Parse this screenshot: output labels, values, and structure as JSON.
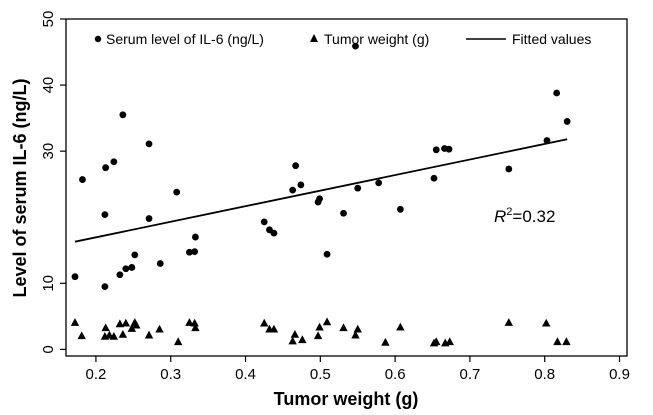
{
  "chart_data": {
    "type": "scatter",
    "xlabel": "Tumor weight (g)",
    "ylabel": "Level of serum IL-6 (ng/L)",
    "xlim": [
      0.16,
      0.91
    ],
    "ylim": [
      -1,
      50
    ],
    "x_ticks": [
      0.2,
      0.3,
      0.4,
      0.5,
      0.6,
      0.7,
      0.8,
      0.9
    ],
    "x_tick_labels": [
      "0.2",
      "0.3",
      "0.4",
      "0.5",
      "0.6",
      "0.7",
      "0.8",
      "0.9"
    ],
    "y_ticks": [
      0,
      10,
      30,
      40,
      50
    ],
    "y_tick_labels": [
      "0",
      "10",
      "30",
      "40",
      "50"
    ],
    "grid": false,
    "legend_position": "top",
    "legend": [
      {
        "label": "Serum level of IL-6 (ng/L)",
        "marker": "circle"
      },
      {
        "label": "Tumor weight (g)",
        "marker": "triangle"
      },
      {
        "label": "Fitted values",
        "marker": "line"
      }
    ],
    "annotation": {
      "prefix": "R",
      "sup": "2",
      "suffix": "=0.32"
    },
    "series": [
      {
        "name": "Serum level of IL-6 (ng/L)",
        "marker": "circle",
        "x": [
          0.172,
          0.182,
          0.212,
          0.212,
          0.213,
          0.224,
          0.232,
          0.236,
          0.24,
          0.248,
          0.252,
          0.271,
          0.271,
          0.286,
          0.308,
          0.325,
          0.332,
          0.333,
          0.425,
          0.432,
          0.438,
          0.463,
          0.467,
          0.474,
          0.497,
          0.499,
          0.509,
          0.531,
          0.547,
          0.55,
          0.578,
          0.607,
          0.652,
          0.655,
          0.666,
          0.672,
          0.752,
          0.803,
          0.816,
          0.83
        ],
        "y": [
          11.0,
          25.7,
          9.5,
          20.4,
          27.5,
          28.4,
          11.3,
          35.5,
          12.2,
          12.4,
          14.3,
          19.8,
          31.1,
          13.0,
          23.8,
          14.7,
          14.8,
          17.0,
          19.3,
          18.1,
          17.6,
          24.1,
          27.8,
          24.9,
          22.3,
          22.8,
          14.4,
          20.6,
          45.9,
          24.4,
          25.2,
          21.2,
          25.9,
          30.2,
          30.4,
          30.3,
          27.3,
          31.6,
          38.8,
          34.5
        ]
      },
      {
        "name": "Tumor weight (g)",
        "marker": "triangle",
        "x": [
          0.172,
          0.181,
          0.212,
          0.213,
          0.218,
          0.224,
          0.232,
          0.236,
          0.24,
          0.248,
          0.252,
          0.254,
          0.271,
          0.285,
          0.31,
          0.325,
          0.332,
          0.333,
          0.425,
          0.432,
          0.438,
          0.463,
          0.466,
          0.476,
          0.497,
          0.499,
          0.509,
          0.531,
          0.547,
          0.55,
          0.587,
          0.607,
          0.652,
          0.655,
          0.667,
          0.673,
          0.752,
          0.802,
          0.817,
          0.829
        ],
        "y": [
          4.1,
          2.1,
          2.0,
          3.3,
          2.2,
          2.0,
          3.9,
          2.3,
          4.0,
          3.2,
          4.1,
          3.7,
          2.2,
          3.1,
          1.2,
          4.1,
          4.0,
          3.3,
          4.0,
          3.1,
          3.1,
          1.3,
          2.3,
          1.5,
          2.1,
          3.4,
          4.2,
          3.3,
          2.2,
          3.1,
          1.1,
          3.4,
          1.0,
          1.2,
          1.0,
          1.2,
          4.1,
          4.0,
          1.2,
          1.2
        ]
      },
      {
        "name": "Fitted values",
        "marker": "line",
        "x": [
          0.172,
          0.83
        ],
        "y": [
          16.3,
          31.8
        ]
      }
    ]
  }
}
